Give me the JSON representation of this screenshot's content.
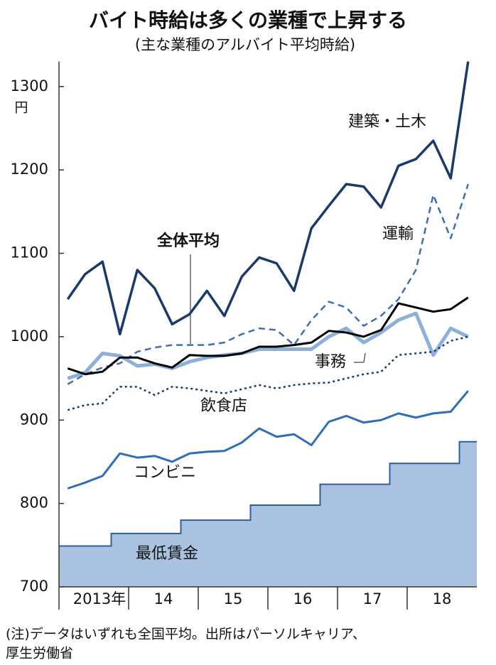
{
  "chart_data": {
    "type": "line",
    "title": "バイト時給は多くの業種で上昇する",
    "subtitle": "(主な業種のアルバイト平均時給)",
    "unit": "円",
    "note": [
      "(注)データはいずれも全国平均。出所はパーソルキャリア、",
      "厚生労働省"
    ],
    "categories": [
      "2013年",
      null,
      null,
      null,
      "14",
      null,
      null,
      null,
      "15",
      null,
      null,
      null,
      "16",
      null,
      null,
      null,
      "17",
      null,
      null,
      null,
      "18",
      null,
      null,
      null
    ],
    "ylim": [
      700,
      1330
    ],
    "yticks": [
      700,
      800,
      900,
      1000,
      1100,
      1200,
      1300
    ],
    "grid": false,
    "series": [
      {
        "name": "最低賃金",
        "color": "#2f5f9f",
        "fill": "#a9c2e0",
        "step": true,
        "style": "solid",
        "width": 2,
        "values": [
          749,
          749,
          749,
          764,
          764,
          764,
          764,
          780,
          780,
          780,
          780,
          798,
          798,
          798,
          798,
          823,
          823,
          823,
          823,
          848,
          848,
          848,
          848,
          874
        ]
      },
      {
        "name": "建築・土木",
        "color": "#1a3a6b",
        "style": "solid",
        "width": 3.5,
        "values": [
          1045,
          1075,
          1090,
          1003,
          1080,
          1058,
          1015,
          1027,
          1055,
          1025,
          1072,
          1095,
          1088,
          1055,
          1130,
          1157,
          1183,
          1180,
          1155,
          1205,
          1213,
          1235,
          1190,
          1330
        ]
      },
      {
        "name": "運輸",
        "color": "#3d6fb0",
        "style": "dashed",
        "width": 2.5,
        "values": [
          943,
          955,
          963,
          968,
          982,
          987,
          990,
          990,
          990,
          993,
          1003,
          1010,
          1008,
          990,
          1020,
          1042,
          1035,
          1013,
          1025,
          1045,
          1080,
          1170,
          1118,
          1183
        ]
      },
      {
        "name": "事務",
        "color": "#8db0d8",
        "style": "solid",
        "width": 5,
        "values": [
          950,
          957,
          980,
          977,
          965,
          967,
          962,
          970,
          975,
          978,
          980,
          985,
          985,
          985,
          985,
          1000,
          1010,
          993,
          1005,
          1020,
          1028,
          978,
          1010,
          1000
        ]
      },
      {
        "name": "全体平均",
        "color": "#000000",
        "style": "solid",
        "width": 3,
        "values": [
          962,
          955,
          958,
          975,
          975,
          968,
          963,
          978,
          977,
          977,
          980,
          988,
          988,
          990,
          993,
          1007,
          1005,
          1000,
          1008,
          1040,
          1035,
          1030,
          1033,
          1047
        ]
      },
      {
        "name": "飲食店",
        "color": "#1a3a6b",
        "style": "dotted",
        "width": 2.5,
        "values": [
          912,
          918,
          920,
          940,
          940,
          930,
          940,
          938,
          935,
          932,
          937,
          942,
          938,
          942,
          944,
          945,
          950,
          955,
          958,
          978,
          980,
          982,
          995,
          1000
        ]
      },
      {
        "name": "コンビニ",
        "color": "#2f6db5",
        "style": "solid",
        "width": 3,
        "values": [
          818,
          825,
          833,
          860,
          855,
          857,
          850,
          860,
          862,
          863,
          873,
          890,
          880,
          883,
          870,
          898,
          905,
          897,
          900,
          908,
          903,
          908,
          910,
          935
        ]
      }
    ]
  }
}
